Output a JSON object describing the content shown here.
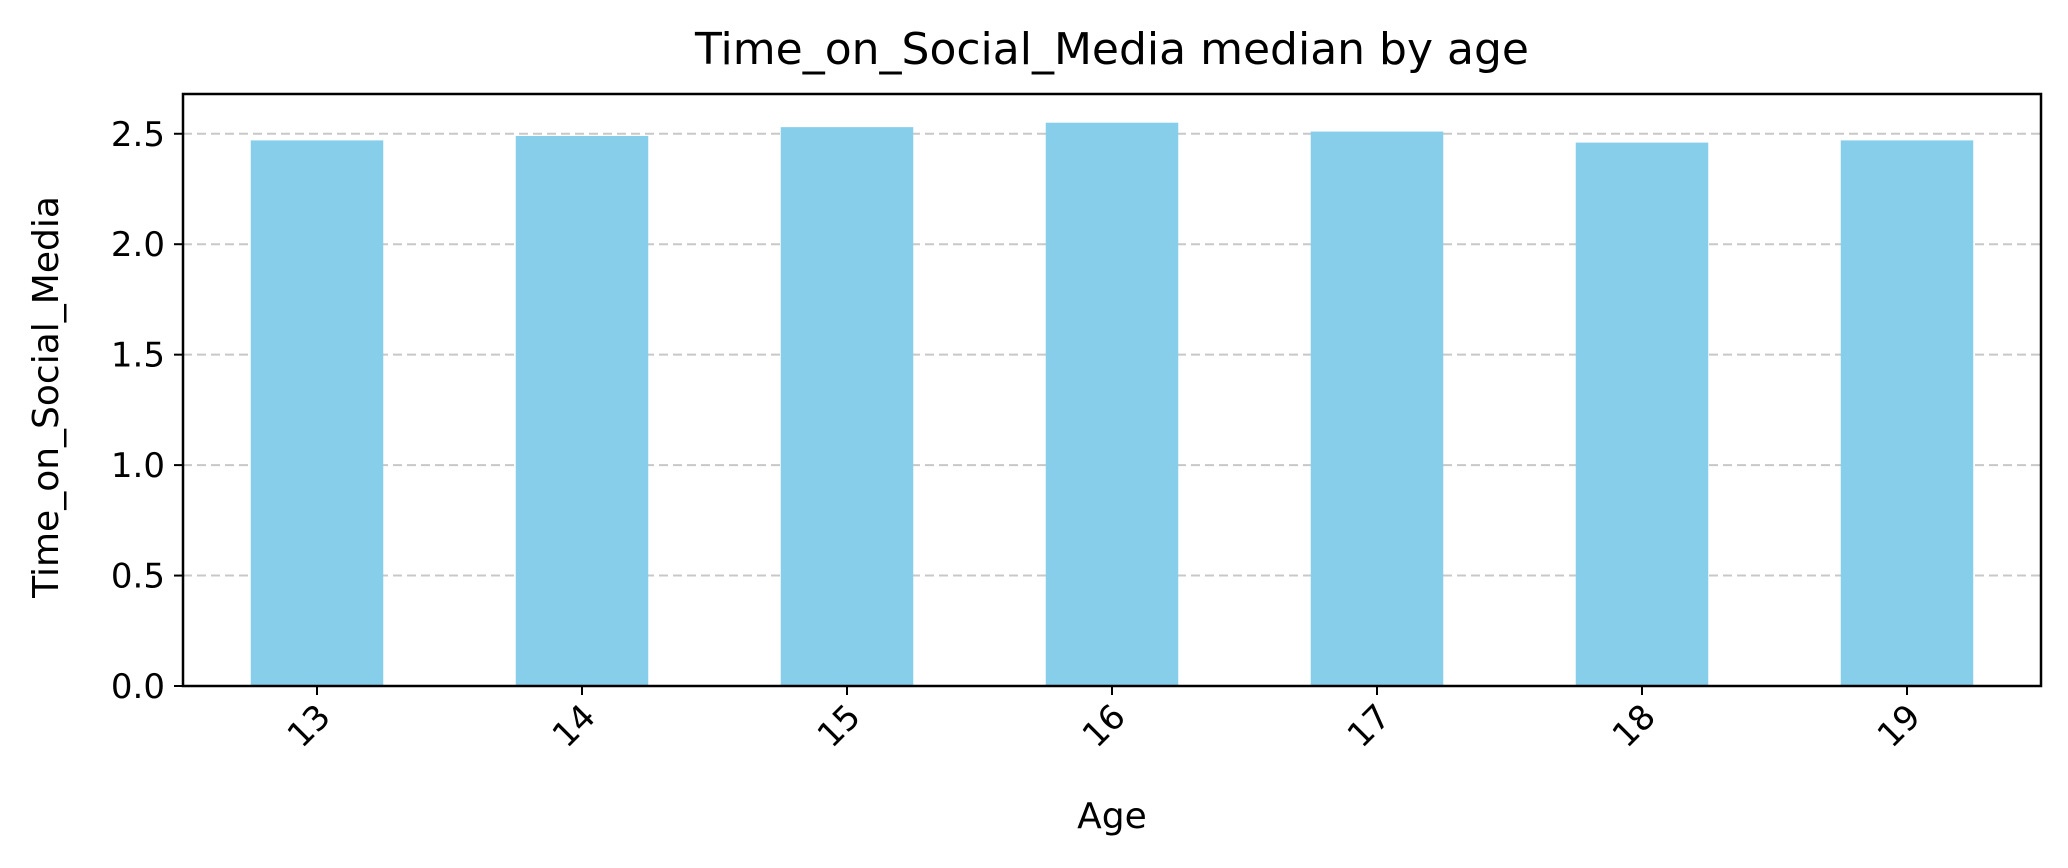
{
  "chart_data": {
    "type": "bar",
    "title": "Time_on_Social_Media median by age",
    "xlabel": "Age",
    "ylabel": "Time_on_Social_Media",
    "categories": [
      "13",
      "14",
      "15",
      "16",
      "17",
      "18",
      "19"
    ],
    "values": [
      2.47,
      2.49,
      2.53,
      2.55,
      2.51,
      2.46,
      2.47
    ],
    "ylim": [
      0,
      2.68
    ],
    "yticks": [
      "0.0",
      "0.5",
      "1.0",
      "1.5",
      "2.0",
      "2.5"
    ],
    "ytick_values": [
      0,
      0.5,
      1.0,
      1.5,
      2.0,
      2.5
    ],
    "grid": "y-dashed",
    "xtick_rotation": 45,
    "bar_color": "#87CEEB",
    "grid_color": "#c8c8c8"
  }
}
